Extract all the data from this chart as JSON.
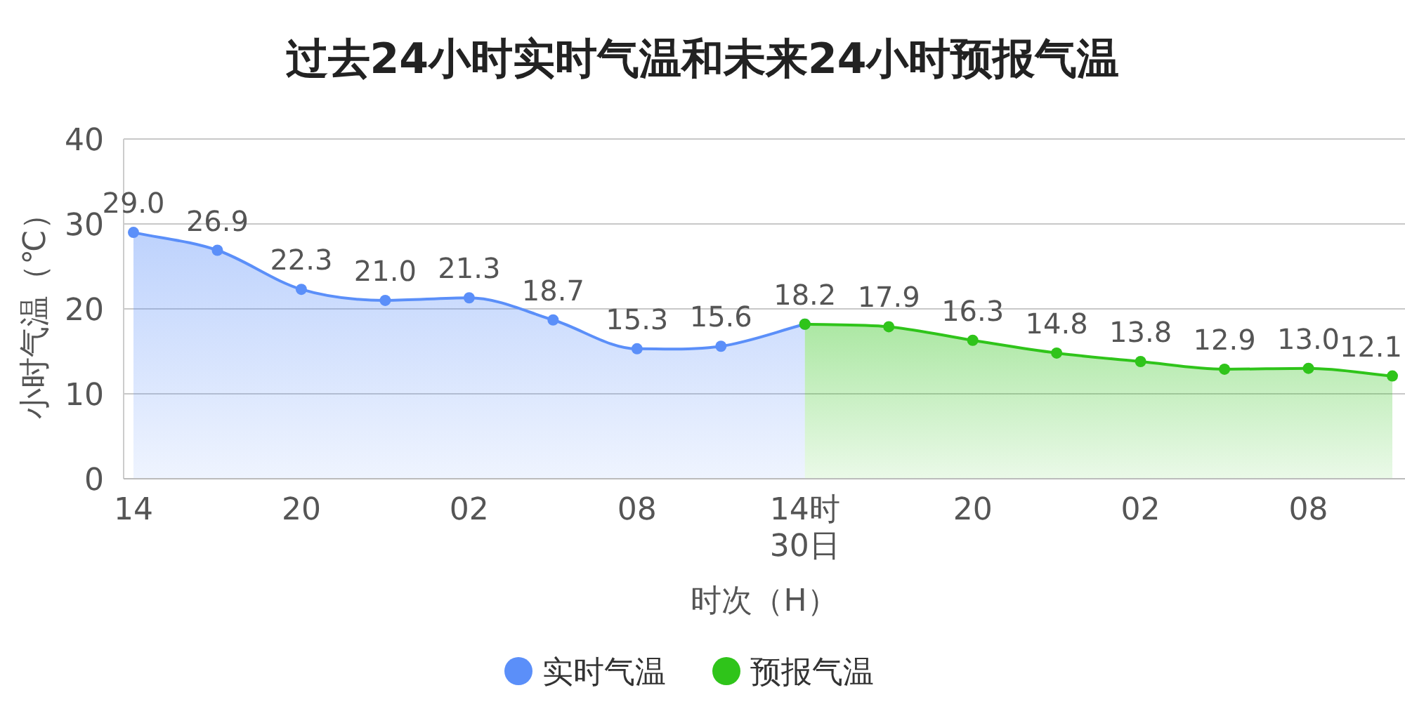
{
  "chart_data": {
    "type": "area",
    "title": "过去24小时实时气温和未来24小时预报气温",
    "xlabel": "时次（H）",
    "ylabel": "小时气温（℃）",
    "categories": [
      "14",
      null,
      "20",
      null,
      "02",
      null,
      "08",
      null,
      "14时\n30日",
      null,
      "20",
      null,
      "02",
      null,
      "08",
      null
    ],
    "series": [
      {
        "name": "实时气温",
        "color": "#5b8ff9",
        "values": [
          29.0,
          26.9,
          22.3,
          21.0,
          21.3,
          18.7,
          15.3,
          15.6,
          18.2,
          null,
          null,
          null,
          null,
          null,
          null,
          null
        ],
        "value_labels": [
          "29.0",
          "26.9",
          "22.3",
          "21.0",
          "21.3",
          "18.7",
          "15.3",
          "15.6",
          "18.2",
          null,
          null,
          null,
          null,
          null,
          null,
          null
        ]
      },
      {
        "name": "预报气温",
        "color": "#2fc41a",
        "values": [
          null,
          null,
          null,
          null,
          null,
          null,
          null,
          null,
          18.2,
          17.9,
          16.3,
          14.8,
          13.8,
          12.9,
          13.0,
          12.1
        ],
        "value_labels": [
          null,
          null,
          null,
          null,
          null,
          null,
          null,
          null,
          null,
          "17.9",
          "16.3",
          "14.8",
          "13.8",
          "12.9",
          "13.0",
          "12.1"
        ]
      }
    ],
    "ylim": [
      0,
      40
    ],
    "yticks": [
      0,
      10,
      20,
      30,
      40
    ],
    "grid": "y",
    "legend": "bottom",
    "marker": "circle"
  }
}
